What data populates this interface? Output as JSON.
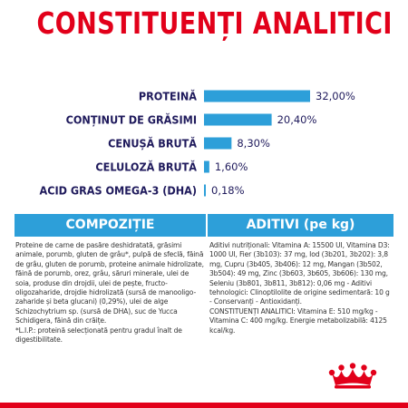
{
  "page": {
    "title": "CONSTITUENȚI ANALITICI"
  },
  "chart_data": {
    "type": "bar",
    "orientation": "horizontal",
    "categories": [
      "PROTEINĂ",
      "CONȚINUT DE GRĂSIMI",
      "CENUȘĂ BRUTĂ",
      "CELULOZĂ BRUTĂ",
      "ACID GRAS OMEGA-3 (DHA)"
    ],
    "values": [
      32.0,
      20.4,
      8.3,
      1.6,
      0.18
    ],
    "value_labels": [
      "32,00%",
      "20,40%",
      "8,30%",
      "1,60%",
      "0,18%"
    ],
    "bar_color": "#2d9fd9",
    "label_color": "#1f1a5c",
    "xlim": [
      0,
      32
    ]
  },
  "sections": {
    "composition": {
      "title": "COMPOZIȚIE",
      "text": "Proteine de carne de pasăre deshidratată, grăsimi animale, porumb, gluten de grâu*, pulpă de sfeclă, făină de grâu, gluten de porumb, proteine animale hidrolizate, făină de porumb, orez, grâu, săruri minerale, ulei de soia, produse din drojdii, ulei de pește, fructo-oligozaharide, drojdie hidrolizată (sursă de manooligo- zaharide și beta glucani) (0,29%), ulei de alge Schizochytrium sp. (sursă de DHA), suc de Yucca Schidigera, făină din crăițe.\n*L.I.P.: proteină selecționată pentru gradul înalt de digestibilitate."
    },
    "additives": {
      "title": "ADITIVI (pe kg)",
      "text": "Aditivi nutriționali: Vitamina A: 15500 UI, Vitamina D3: 1000 UI, Fier (3b103): 37 mg, Iod (3b201, 3b202): 3,8 mg, Cupru (3b405, 3b406): 12 mg, Mangan (3b502, 3b504): 49 mg, Zinc (3b603, 3b605, 3b606): 130 mg, Seleniu (3b801, 3b811, 3b812): 0,06 mg - Aditivi tehnologici: Clinoptilolite de origine sedimentară: 10 g - Conservanți - Antioxidanți.\nCONSTITUENȚI ANALITICI: Vitamina E: 510 mg/kg - Vitamina C: 400 mg/kg. Energie metabolizabilă: 4125 kcal/kg."
    }
  },
  "colors": {
    "brand_red": "#e2001a",
    "accent_blue": "#2d9fd9"
  },
  "logo": {
    "name": "royal-canin-crown-logo"
  }
}
